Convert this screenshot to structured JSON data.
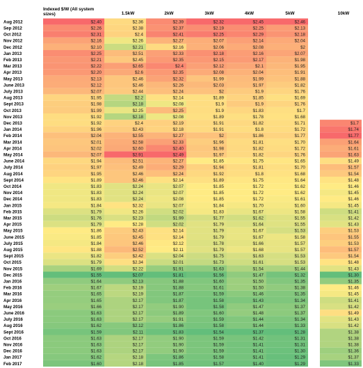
{
  "chart_data": {
    "type": "heatmap",
    "title": "",
    "columns": [
      "Indexed $/W (All system sizes)",
      "1.5kW",
      "2kW",
      "3kW",
      "4kW",
      "5kW",
      "10kW"
    ],
    "rows": [
      "Aug 2012",
      "Sep 2012",
      "Oct 2012",
      "Nov 2012",
      "Dec 2012",
      "Jan 2013",
      "Feb 2013",
      "Mar 2013",
      "Apr 2013",
      "May 2013",
      "June 2013",
      "July 2013",
      "Aug 2013",
      "Sept 2013",
      "Oct 2013",
      "Nov 2013",
      "Dec 2013",
      "Jan 2014",
      "Feb 2014",
      "Mar 2014",
      "Apr 2014",
      "May 2014",
      "June 2014",
      "July 2014",
      "Aug 2014",
      "Sept 2014",
      "Oct 2014",
      "Nov 2014",
      "Dec 2014",
      "Jan 2015",
      "Feb 2015",
      "Mar 2015",
      "Apr 2015",
      "May 2015",
      "June 2015",
      "July 2015",
      "Aug 2015",
      "Sept 2015",
      "Oct 2015",
      "Nov 2015",
      "Dec 2015",
      "Jan 2016",
      "Feb 2016",
      "Mar 2016",
      "Apr 2016",
      "May 2016",
      "June 2016",
      "July 2016",
      "Aug 2016",
      "Sept 2016",
      "Oct 2016",
      "Nov 2016",
      "Dec 2016",
      "Jan 2017",
      "Feb 2017"
    ],
    "cells": [
      [
        "$2.40",
        "$2.36",
        "$2.39",
        "$2.32",
        "$2.45",
        "$2.46",
        ""
      ],
      [
        "$2.26",
        "$2.38",
        "$2.37",
        "$2.19",
        "$2.25",
        "$2.13",
        ""
      ],
      [
        "$2.31",
        "$2.4",
        "$2.41",
        "$2.25",
        "$2.29",
        "$2.18",
        ""
      ],
      [
        "$2.16",
        "$2.26",
        "$2.27",
        "$2.07",
        "$2.14",
        "$2.04",
        ""
      ],
      [
        "$2.10",
        "$2.21",
        "$2.16",
        "$2.06",
        "$2.08",
        "$2",
        ""
      ],
      [
        "$2.25",
        "$2.51",
        "$2.33",
        "$2.18",
        "$2.16",
        "$2.07",
        ""
      ],
      [
        "$2.21",
        "$2.45",
        "$2.35",
        "$2.15",
        "$2.17",
        "$1.98",
        ""
      ],
      [
        "$2.22",
        "$2.65",
        "$2.4",
        "$2.12",
        "$2.1",
        "$1.95",
        ""
      ],
      [
        "$2.20",
        "$2.6",
        "$2.35",
        "$2.08",
        "$2.04",
        "$1.91",
        ""
      ],
      [
        "$2.13",
        "$2.46",
        "$2.32",
        "$1.99",
        "$1.99",
        "$1.88",
        ""
      ],
      [
        "$2.12",
        "$2.46",
        "$2.26",
        "$2.03",
        "$1.97",
        "$1.82",
        ""
      ],
      [
        "$2.07",
        "$2.44",
        "$2.24",
        "$2",
        "$1.9",
        "$1.76",
        ""
      ],
      [
        "$1.95",
        "$2.2",
        "$2.14",
        "$1.89",
        "$1.85",
        "$1.69",
        ""
      ],
      [
        "$1.98",
        "$2.18",
        "$2.08",
        "$1.9",
        "$1.9",
        "$1.76",
        ""
      ],
      [
        "$1.99",
        "$2.25",
        "$2.25",
        "$1.9",
        "$1.83",
        "$1.7",
        ""
      ],
      [
        "$1.92",
        "$2.18",
        "$2.08",
        "$1.89",
        "$1.78",
        "$1.68",
        ""
      ],
      [
        "$1.92",
        "$2.4",
        "$2.19",
        "$1.91",
        "$1.82",
        "$1.71",
        "$1.7"
      ],
      [
        "$1.96",
        "$2.43",
        "$2.18",
        "$1.91",
        "$1.8",
        "$1.72",
        "$1.74"
      ],
      [
        "$2.04",
        "$2.55",
        "$2.27",
        "$2",
        "$1.86",
        "$1.77",
        "$1.77"
      ],
      [
        "$2.01",
        "$2.58",
        "$2.33",
        "$1.96",
        "$1.81",
        "$1.70",
        "$1.64"
      ],
      [
        "$2.02",
        "$2.60",
        "$2.40",
        "$1.98",
        "$1.82",
        "$1.72",
        "$1.61"
      ],
      [
        "$2.07",
        "$2.91",
        "$2.49",
        "$1.97",
        "$1.82",
        "$1.76",
        "$1.63"
      ],
      [
        "$1.94",
        "$2.51",
        "$2.27",
        "$1.85",
        "$1.75",
        "$1.65",
        "$1.49"
      ],
      [
        "$1.97",
        "$2.49",
        "$2.29",
        "$1.94",
        "$1.81",
        "$1.70",
        "$1.57"
      ],
      [
        "$1.95",
        "$2.46",
        "$2.24",
        "$1.92",
        "$1.8",
        "$1.68",
        "$1.54"
      ],
      [
        "$1.89",
        "$2.46",
        "$2.14",
        "$1.89",
        "$1.75",
        "$1.64",
        "$1.48"
      ],
      [
        "$1.83",
        "$2.24",
        "$2.07",
        "$1.85",
        "$1.72",
        "$1.62",
        "$1.46"
      ],
      [
        "$1.83",
        "$2.24",
        "$2.07",
        "$1.85",
        "$1.72",
        "$1.62",
        "$1.45"
      ],
      [
        "$1.83",
        "$2.24",
        "$2.08",
        "$1.85",
        "$1.72",
        "$1.61",
        "$1.46"
      ],
      [
        "$1.84",
        "$2.32",
        "$2.07",
        "$1.84",
        "$1.70",
        "$1.60",
        "$1.45"
      ],
      [
        "$1.79",
        "$2.26",
        "$2.02",
        "$1.83",
        "$1.67",
        "$1.58",
        "$1.41"
      ],
      [
        "$1.76",
        "$2.23",
        "$1.99",
        "$1.77",
        "$1.62",
        "$1.55",
        "$1.42"
      ],
      [
        "$1.79",
        "$2.28",
        "$2.02",
        "$1.79",
        "$1.64",
        "$1.55",
        "$1.43"
      ],
      [
        "$1.86",
        "$2.43",
        "$2.14",
        "$1.79",
        "$1.67",
        "$1.53",
        "$1.53"
      ],
      [
        "$1.85",
        "$2.45",
        "$2.14",
        "$1.79",
        "$1.67",
        "$1.58",
        "$1.55"
      ],
      [
        "$1.84",
        "$2.46",
        "$2.12",
        "$1.78",
        "$1.66",
        "$1.57",
        "$1.53"
      ],
      [
        "$1.88",
        "$2.52",
        "$2.11",
        "$1.79",
        "$1.68",
        "$1.57",
        "$1.57"
      ],
      [
        "$1.82",
        "$2.42",
        "$2.04",
        "$1.75",
        "$1.63",
        "$1.53",
        "$1.54"
      ],
      [
        "$1.79",
        "$2.34",
        "$2.01",
        "$1.73",
        "$1.61",
        "$1.53",
        "$1.48"
      ],
      [
        "$1.69",
        "$2.22",
        "$1.91",
        "$1.63",
        "$1.54",
        "$1.44",
        "$1.43"
      ],
      [
        "$1.55",
        "$2.07",
        "$1.81",
        "$1.56",
        "$1.47",
        "$1.32",
        "$1.30"
      ],
      [
        "$1.64",
        "$2.13",
        "$1.88",
        "$1.60",
        "$1.50",
        "$1.35",
        "$1.35"
      ],
      [
        "$1.67",
        "$2.19",
        "$1.88",
        "$1.61",
        "$1.50",
        "$1.38",
        "$1.46"
      ],
      [
        "$1.65",
        "$2.19",
        "$1.87",
        "$1.59",
        "$1.46",
        "$1.35",
        "$1.45"
      ],
      [
        "$1.65",
        "$2.17",
        "$1.87",
        "$1.58",
        "$1.43",
        "$1.34",
        "$1.41"
      ],
      [
        "$1.66",
        "$2.17",
        "$1.90",
        "$1.58",
        "$1.47",
        "$1.37",
        "$1.42"
      ],
      [
        "$1.63",
        "$2.17",
        "$1.89",
        "$1.60",
        "$1.48",
        "$1.37",
        "$1.49"
      ],
      [
        "$1.63",
        "$2.17",
        "$1.91",
        "$1.59",
        "$1.44",
        "$1.34",
        "$1.43"
      ],
      [
        "$1.62",
        "$2.12",
        "$1.86",
        "$1.58",
        "$1.44",
        "$1.33",
        "$1.42"
      ],
      [
        "$1.59",
        "$2.11",
        "$1.83",
        "$1.54",
        "$1.37",
        "$1.28",
        "$1.38"
      ],
      [
        "$1.63",
        "$2.17",
        "$1.90",
        "$1.59",
        "$1.42",
        "$1.31",
        "$1.38"
      ],
      [
        "$1.63",
        "$2.17",
        "$1.90",
        "$1.59",
        "$1.41",
        "$1.31",
        "$1.38"
      ],
      [
        "$1.63",
        "$2.17",
        "$1.90",
        "$1.59",
        "$1.41",
        "$1.30",
        "$1.36"
      ],
      [
        "$1.62",
        "$2.18",
        "$1.86",
        "$1.58",
        "$1.41",
        "$1.29",
        "$1.37"
      ],
      [
        "$1.60",
        "$2.18",
        "$1.85",
        "$1.57",
        "$1.40",
        "$1.29",
        "$1.33"
      ]
    ],
    "color_scale": {
      "low": "#63be7b",
      "mid": "#ffeb84",
      "high": "#f8696b",
      "scope": "per-column"
    }
  }
}
